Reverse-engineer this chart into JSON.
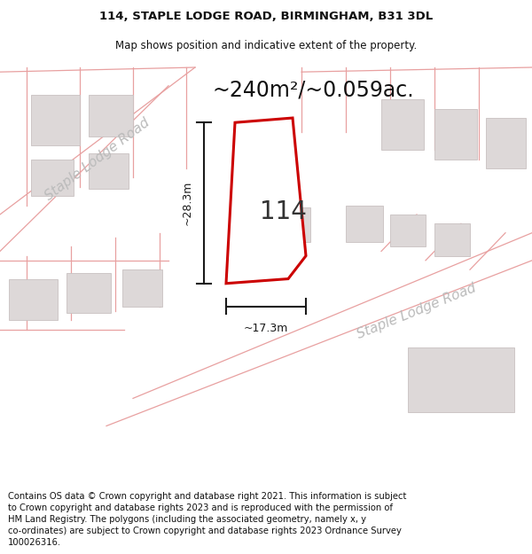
{
  "title": "114, STAPLE LODGE ROAD, BIRMINGHAM, B31 3DL",
  "subtitle": "Map shows position and indicative extent of the property.",
  "footer": "Contains OS data © Crown copyright and database right 2021. This information is subject to Crown copyright and database rights 2023 and is reproduced with the permission of HM Land Registry. The polygons (including the associated geometry, namely x, y co-ordinates) are subject to Crown copyright and database rights 2023 Ordnance Survey 100026316.",
  "map_bg": "#f2eeee",
  "property_outline_color": "#cc0000",
  "property_fill": "#ffffff",
  "dim_color": "#1a1a1a",
  "area_text": "~240m²/~0.059ac.",
  "number_text": "114",
  "width_label": "~17.3m",
  "height_label": "~28.3m",
  "road_label_right": "Staple Lodge Road",
  "road_label_left": "Staple Lodge Road",
  "title_fontsize": 9.5,
  "subtitle_fontsize": 8.5,
  "footer_fontsize": 7.2,
  "area_fontsize": 17,
  "number_fontsize": 20,
  "road_fontsize": 11,
  "dim_fontsize": 9,
  "road_color": "#e8a0a0",
  "building_fc": "#ddd8d8",
  "building_ec": "#c8c0c0"
}
